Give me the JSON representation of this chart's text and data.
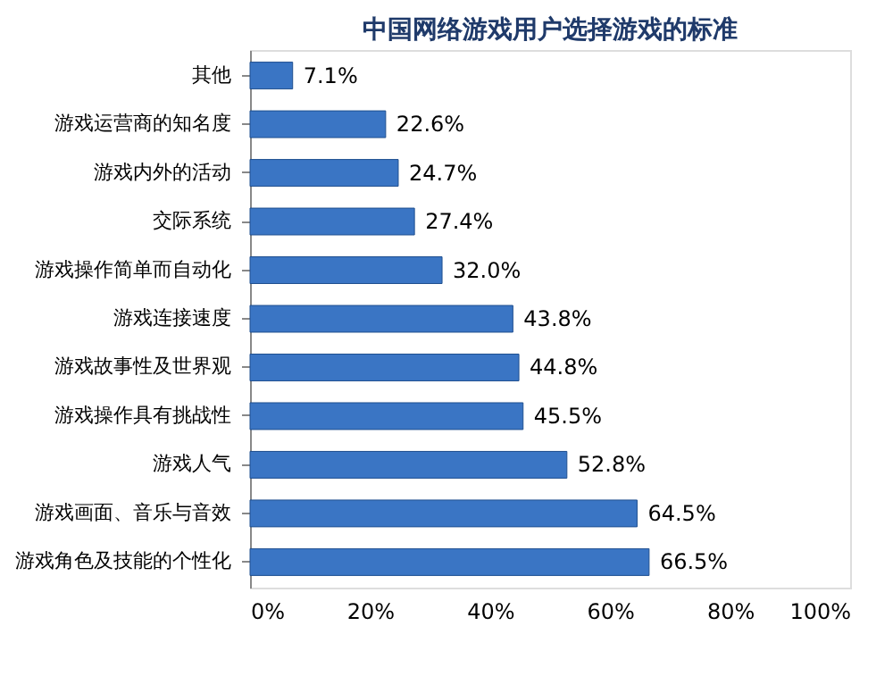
{
  "chart_data": {
    "type": "bar",
    "orientation": "horizontal",
    "title": "中国网络游戏用户选择游戏的标准",
    "categories": [
      "其他",
      "游戏运营商的知名度",
      "游戏内外的活动",
      "交际系统",
      "游戏操作简单而自动化",
      "游戏连接速度",
      "游戏故事性及世界观",
      "游戏操作具有挑战性",
      "游戏人气",
      "游戏画面、音乐与音效",
      "游戏角色及技能的个性化"
    ],
    "values": [
      7.1,
      22.6,
      24.7,
      27.4,
      32.0,
      43.8,
      44.8,
      45.5,
      52.8,
      64.5,
      66.5
    ],
    "value_labels": [
      "7.1%",
      "22.6%",
      "24.7%",
      "27.4%",
      "32.0%",
      "43.8%",
      "44.8%",
      "45.5%",
      "52.8%",
      "64.5%",
      "66.5%"
    ],
    "color": "#3a75c4",
    "xlim": [
      0,
      100
    ],
    "xticks": [
      {
        "value": 0,
        "label": "0%"
      },
      {
        "value": 20,
        "label": "20%"
      },
      {
        "value": 40,
        "label": "40%"
      },
      {
        "value": 60,
        "label": "60%"
      },
      {
        "value": 80,
        "label": "80%"
      },
      {
        "value": 100,
        "label": "100%"
      }
    ],
    "grid": false
  }
}
